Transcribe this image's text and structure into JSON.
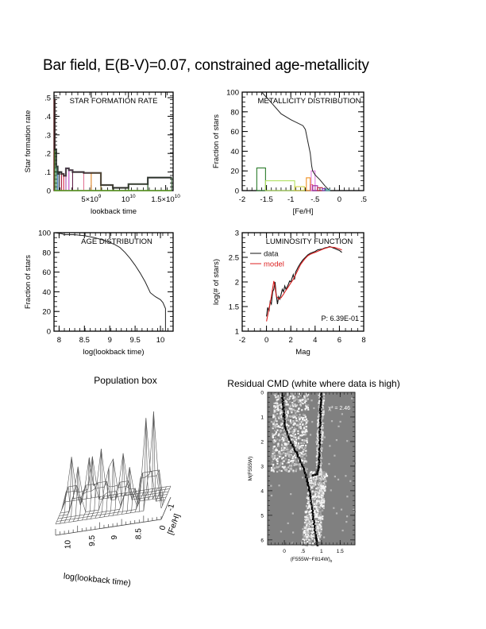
{
  "page": {
    "title": "Bar field, E(B-V)=0.07, constrained age-metallicity"
  },
  "chart_data": [
    {
      "id": "sfr",
      "type": "bar",
      "title": "STAR FORMATION RATE",
      "xlabel": "lookback time",
      "ylabel": "Star formation rate",
      "xlim": [
        0,
        16000000000.0
      ],
      "ylim": [
        0,
        0.53
      ],
      "xticks": [
        {
          "v": 5000000000.0,
          "label": "5×10",
          "sup": "9"
        },
        {
          "v": 10000000000.0,
          "label": "10",
          "sup": "10"
        },
        {
          "v": 15000000000.0,
          "label": "1.5×10",
          "sup": "10"
        }
      ],
      "yticks": [
        {
          "v": 0,
          "label": "0"
        },
        {
          "v": 0.1,
          "label": ".1"
        },
        {
          "v": 0.2,
          "label": ".2"
        },
        {
          "v": 0.3,
          "label": ".3"
        },
        {
          "v": 0.4,
          "label": ".4"
        },
        {
          "v": 0.5,
          "label": ".5"
        }
      ],
      "bins": [
        {
          "x0": 0.0,
          "x1": 100000000.0,
          "value": 0.49,
          "color": "#7a1010"
        },
        {
          "x0": 100000000.0,
          "x1": 300000000.0,
          "value": 0.22,
          "color": "#1a7a1a"
        },
        {
          "x0": 300000000.0,
          "x1": 500000000.0,
          "value": 0.13,
          "color": "#3a8a6a"
        },
        {
          "x0": 500000000.0,
          "x1": 700000000.0,
          "value": 0.09,
          "color": "#4a7ad0"
        },
        {
          "x0": 700000000.0,
          "x1": 1000000000.0,
          "value": 0.1,
          "color": "#202020"
        },
        {
          "x0": 1000000000.0,
          "x1": 1300000000.0,
          "value": 0.09,
          "color": "#c02040"
        },
        {
          "x0": 1300000000.0,
          "x1": 1600000000.0,
          "value": 0.08,
          "color": "#e04060"
        },
        {
          "x0": 1600000000.0,
          "x1": 2000000000.0,
          "value": 0.12,
          "color": "#a040a0"
        },
        {
          "x0": 2000000000.0,
          "x1": 2500000000.0,
          "value": 0.11,
          "color": "#d060d0"
        },
        {
          "x0": 2500000000.0,
          "x1": 4000000000.0,
          "value": 0.1,
          "color": "#5a2040"
        },
        {
          "x0": 4000000000.0,
          "x1": 5000000000.0,
          "value": 0.095,
          "color": "#e07090"
        },
        {
          "x0": 5000000000.0,
          "x1": 6300000000.0,
          "value": 0.095,
          "color": "#e09020"
        },
        {
          "x0": 6300000000.0,
          "x1": 7900000000.0,
          "value": 0.03,
          "color": "#6a5a10"
        },
        {
          "x0": 7900000000.0,
          "x1": 10000000000.0,
          "value": 0.015,
          "color": "#3a4a20"
        },
        {
          "x0": 10000000000.0,
          "x1": 12600000000.0,
          "value": 0.035,
          "color": "#4a8a2a"
        },
        {
          "x0": 12600000000.0,
          "x1": 15800000000.0,
          "value": 0.07,
          "color": "#1a4a1a"
        }
      ]
    },
    {
      "id": "metallicity",
      "type": "bar",
      "title": "METALLICITY DISTRIBUTION",
      "xlabel": "[Fe/H]",
      "ylabel": "Fraction of stars",
      "xlim": [
        -2,
        0.5
      ],
      "ylim": [
        0,
        100
      ],
      "xticks": [
        {
          "v": -2,
          "label": "-2"
        },
        {
          "v": -1.5,
          "label": "-1.5"
        },
        {
          "v": -1,
          "label": "-1"
        },
        {
          "v": -0.5,
          "label": "-.5"
        },
        {
          "v": 0,
          "label": "0"
        },
        {
          "v": 0.5,
          "label": ".5"
        }
      ],
      "yticks": [
        {
          "v": 0,
          "label": "0"
        },
        {
          "v": 20,
          "label": "20"
        },
        {
          "v": 40,
          "label": "40"
        },
        {
          "v": 60,
          "label": "60"
        },
        {
          "v": 80,
          "label": "80"
        },
        {
          "v": 100,
          "label": "100"
        }
      ],
      "bins": [
        {
          "x0": -1.7,
          "x1": -1.52,
          "value": 23,
          "color": "#2a7a2a"
        },
        {
          "x0": -1.52,
          "x1": -0.92,
          "value": 10,
          "color": "#b0e060"
        },
        {
          "x0": -0.92,
          "x1": -0.72,
          "value": 4,
          "color": "#d0d040"
        },
        {
          "x0": -0.68,
          "x1": -0.6,
          "value": 13,
          "color": "#f09020"
        },
        {
          "x0": -0.6,
          "x1": -0.55,
          "value": 6,
          "color": "#e06060"
        },
        {
          "x0": -0.58,
          "x1": -0.5,
          "value": 20,
          "color": "#e080e0"
        },
        {
          "x0": -0.55,
          "x1": -0.45,
          "value": 5,
          "color": "#a020a0"
        },
        {
          "x0": -0.45,
          "x1": -0.35,
          "value": 3,
          "color": "#c02040"
        },
        {
          "x0": -0.35,
          "x1": -0.28,
          "value": 2,
          "color": "#8040c0"
        },
        {
          "x0": -0.28,
          "x1": -0.2,
          "value": 1.5,
          "color": "#40a0a0"
        }
      ],
      "cumulative": {
        "color": "#222222",
        "x": [
          -1.6,
          -1.45,
          -1.2,
          -1.0,
          -0.75,
          -0.7,
          -0.65,
          -0.6,
          -0.57,
          -0.55,
          -0.5,
          -0.4,
          -0.3,
          -0.22
        ],
        "y": [
          100,
          92,
          78,
          72,
          66,
          62,
          50,
          38,
          25,
          20,
          16,
          11,
          5,
          1
        ]
      }
    },
    {
      "id": "age",
      "type": "line",
      "title": "AGE DISTRIBUTION",
      "xlabel": "log(lookback time)",
      "ylabel": "Fraction of stars",
      "xlim": [
        7.9,
        10.25
      ],
      "ylim": [
        0,
        100
      ],
      "xticks": [
        {
          "v": 8,
          "label": "8"
        },
        {
          "v": 8.5,
          "label": "8.5"
        },
        {
          "v": 9,
          "label": "9"
        },
        {
          "v": 9.5,
          "label": "9.5"
        },
        {
          "v": 10,
          "label": "10"
        }
      ],
      "yticks": [
        {
          "v": 0,
          "label": "0"
        },
        {
          "v": 20,
          "label": "20"
        },
        {
          "v": 40,
          "label": "40"
        },
        {
          "v": 60,
          "label": "60"
        },
        {
          "v": 80,
          "label": "80"
        },
        {
          "v": 100,
          "label": "100"
        }
      ],
      "series": [
        {
          "name": "cumulative",
          "color": "#222222",
          "x": [
            7.9,
            8.05,
            8.1,
            8.3,
            8.5,
            8.7,
            8.9,
            9.0,
            9.1,
            9.2,
            9.3,
            9.4,
            9.5,
            9.6,
            9.7,
            9.8,
            9.9,
            10.0,
            10.05,
            10.1,
            10.1
          ],
          "y": [
            100,
            99,
            98,
            98,
            97,
            95,
            92,
            90,
            88,
            85,
            80,
            74,
            67,
            59,
            50,
            39,
            35,
            32,
            29,
            23,
            0
          ]
        }
      ]
    },
    {
      "id": "luminosity",
      "type": "line",
      "title": "LUMINOSITY FUNCTION",
      "xlabel": "Mag",
      "ylabel": "log(# of stars)",
      "xlim": [
        -2,
        8
      ],
      "ylim": [
        1,
        3
      ],
      "xticks": [
        {
          "v": -2,
          "label": "-2"
        },
        {
          "v": 0,
          "label": "0"
        },
        {
          "v": 2,
          "label": "2"
        },
        {
          "v": 4,
          "label": "4"
        },
        {
          "v": 6,
          "label": "6"
        },
        {
          "v": 8,
          "label": "8"
        }
      ],
      "yticks": [
        {
          "v": 1,
          "label": "1"
        },
        {
          "v": 1.5,
          "label": "1.5"
        },
        {
          "v": 2,
          "label": "2"
        },
        {
          "v": 2.5,
          "label": "2.5"
        },
        {
          "v": 3,
          "label": "3"
        }
      ],
      "annotation": "P: 6.39E-01",
      "series": [
        {
          "name": "data",
          "color": "#111111",
          "x": [
            0.0,
            0.1,
            0.2,
            0.3,
            0.4,
            0.5,
            0.6,
            0.7,
            0.8,
            0.9,
            1.0,
            1.1,
            1.2,
            1.3,
            1.4,
            1.5,
            1.6,
            1.7,
            1.8,
            1.9,
            2.0,
            2.2,
            2.3,
            2.4,
            2.5,
            2.6,
            2.8,
            3.0,
            3.2,
            3.4,
            3.6,
            3.8,
            4.0,
            4.2,
            4.4,
            4.6,
            4.8,
            5.0,
            5.2,
            5.4,
            5.6,
            5.8,
            6.0,
            6.2
          ],
          "y": [
            1.3,
            1.48,
            1.4,
            1.6,
            1.55,
            1.8,
            1.85,
            2.0,
            1.75,
            1.55,
            1.7,
            1.65,
            1.75,
            1.85,
            1.8,
            1.92,
            1.85,
            1.9,
            1.95,
            2.02,
            2.0,
            2.15,
            2.05,
            2.2,
            2.25,
            2.3,
            2.38,
            2.45,
            2.5,
            2.55,
            2.58,
            2.6,
            2.62,
            2.65,
            2.66,
            2.67,
            2.69,
            2.7,
            2.72,
            2.7,
            2.68,
            2.66,
            2.64,
            2.6
          ]
        },
        {
          "name": "model",
          "color": "#dd2222",
          "x": [
            0.0,
            0.2,
            0.4,
            0.6,
            0.7,
            0.8,
            1.0,
            1.2,
            1.4,
            1.6,
            1.8,
            2.0,
            2.2,
            2.4,
            2.6,
            2.8,
            3.0,
            3.2,
            3.4,
            3.6,
            3.8,
            4.0,
            4.4,
            4.8,
            5.2,
            5.6,
            6.0,
            6.2
          ],
          "y": [
            1.2,
            1.45,
            1.7,
            2.02,
            1.9,
            1.72,
            1.65,
            1.68,
            1.75,
            1.83,
            1.9,
            1.98,
            2.05,
            2.15,
            2.25,
            2.35,
            2.42,
            2.48,
            2.53,
            2.56,
            2.58,
            2.6,
            2.64,
            2.68,
            2.71,
            2.7,
            2.67,
            2.65
          ]
        }
      ]
    },
    {
      "id": "population-box",
      "type": "surface",
      "title": "Population box",
      "xlabel": "log(lookback time)",
      "ylabel": "[Fe/H]",
      "xticks": [
        {
          "v": 10,
          "label": "10"
        },
        {
          "v": 9.5,
          "label": "9.5"
        },
        {
          "v": 9,
          "label": "9"
        },
        {
          "v": 8.5,
          "label": "8.5"
        }
      ],
      "yticks": [
        {
          "v": 0,
          "label": "0"
        },
        {
          "v": -1,
          "label": "-1"
        }
      ]
    },
    {
      "id": "residual-cmd",
      "type": "heatmap",
      "title": "Residual CMD (white where data is high)",
      "xlabel": "(F555W−F814W)",
      "xlabel_sub": "0",
      "ylabel": "M(F555W)",
      "xlim": [
        -0.45,
        1.9
      ],
      "ylim": [
        6.2,
        0
      ],
      "xticks": [
        {
          "v": 0,
          "label": "0"
        },
        {
          "v": 0.5,
          "label": ".5"
        },
        {
          "v": 1,
          "label": "1"
        },
        {
          "v": 1.5,
          "label": "1.5"
        }
      ],
      "yticks": [
        {
          "v": 0,
          "label": "0"
        },
        {
          "v": 1,
          "label": "1"
        },
        {
          "v": 2,
          "label": "2"
        },
        {
          "v": 3,
          "label": "3"
        },
        {
          "v": 4,
          "label": "4"
        },
        {
          "v": 5,
          "label": "5"
        },
        {
          "v": 6,
          "label": "6"
        }
      ],
      "annotation": "χ² = 2.46",
      "background_color": "#808080"
    }
  ]
}
